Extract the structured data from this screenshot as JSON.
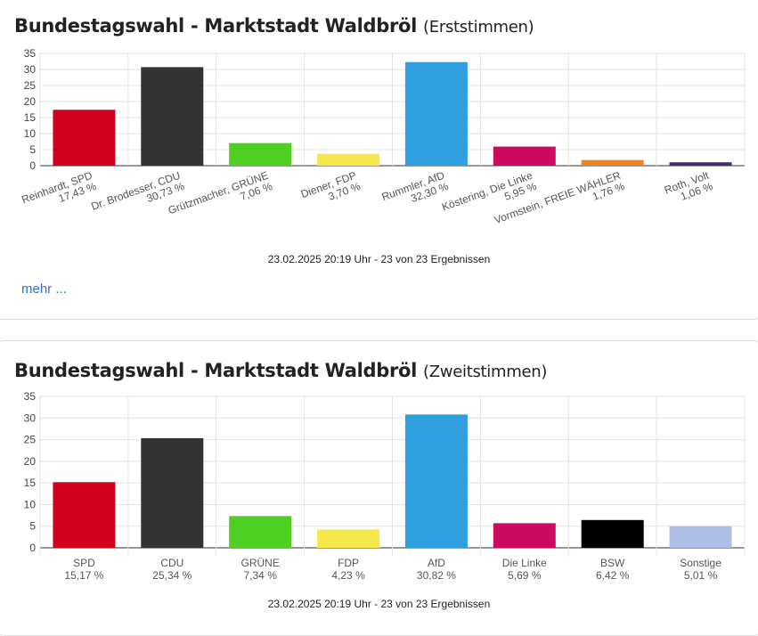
{
  "chart_data": [
    {
      "type": "bar",
      "title": "Bundestagswahl - Marktstadt Waldbröl",
      "subtitle": "(Erststimmen)",
      "categories": [
        "Reinhardt, SPD",
        "Dr. Brodesser, CDU",
        "Grützmacher, GRÜNE",
        "Diener, FDP",
        "Rummler, AfD",
        "Köstering, Die Linke",
        "Vormstein, FREIE WÄHLER",
        "Roth, Volt"
      ],
      "values": [
        17.43,
        30.73,
        7.06,
        3.7,
        32.3,
        5.95,
        1.76,
        1.06
      ],
      "value_labels": [
        "17,43 %",
        "30,73 %",
        "7,06 %",
        "3,70 %",
        "32,30 %",
        "5,95 %",
        "1,76 %",
        "1,06 %"
      ],
      "colors": [
        "#d0021b",
        "#333333",
        "#4ecf22",
        "#f6e84a",
        "#2f9fe0",
        "#cc0a5f",
        "#e5862a",
        "#4b2a6e"
      ],
      "yticks": [
        0,
        5,
        10,
        15,
        20,
        25,
        30,
        35
      ],
      "ylim": [
        0,
        35
      ],
      "grid": true,
      "footnote": "23.02.2025 20:19 Uhr - 23 von 23 Ergebnissen",
      "more_link": "mehr ..."
    },
    {
      "type": "bar",
      "title": "Bundestagswahl - Marktstadt Waldbröl",
      "subtitle": "(Zweitstimmen)",
      "categories": [
        "SPD",
        "CDU",
        "GRÜNE",
        "FDP",
        "AfD",
        "Die Linke",
        "BSW",
        "Sonstige"
      ],
      "values": [
        15.17,
        25.34,
        7.34,
        4.23,
        30.82,
        5.69,
        6.42,
        5.01
      ],
      "value_labels": [
        "15,17 %",
        "25,34 %",
        "7,34 %",
        "4,23 %",
        "30,82 %",
        "5,69 %",
        "6,42 %",
        "5,01 %"
      ],
      "colors": [
        "#d0021b",
        "#333333",
        "#4ecf22",
        "#f6e84a",
        "#2f9fe0",
        "#cc0a5f",
        "#000000",
        "#aebfe6"
      ],
      "yticks": [
        0,
        5,
        10,
        15,
        20,
        25,
        30,
        35
      ],
      "ylim": [
        0,
        35
      ],
      "grid": true,
      "footnote": "23.02.2025 20:19 Uhr - 23 von 23 Ergebnissen"
    }
  ]
}
